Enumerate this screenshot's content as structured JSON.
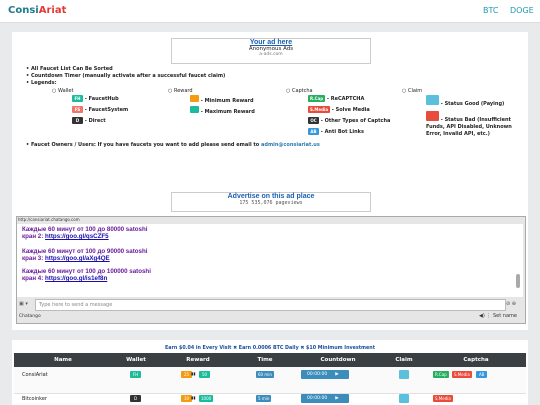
{
  "header": {
    "logo_a": "Consi",
    "logo_b": "Ariat",
    "nav": [
      "BTC",
      "DOGE"
    ]
  },
  "ad_top": {
    "title": "Your ad here",
    "subtitle": "Anonymous Ads",
    "url": "a-ads.com"
  },
  "notes": [
    "All Faucet List Can Be Sorted",
    "Countdown Timer (manually activate after a successful faucet claim)",
    "Legends:"
  ],
  "legend": {
    "wallet": {
      "title": "Wallet",
      "items": [
        {
          "badge": "FH",
          "text": "- FaucetHub"
        },
        {
          "badge": "FS",
          "text": "- FaucetSystem"
        },
        {
          "badge": "D",
          "text": "- Direct"
        }
      ]
    },
    "reward": {
      "title": "Reward",
      "items": [
        {
          "text": "- Minimum Reward"
        },
        {
          "text": "- Maximum Reward"
        }
      ]
    },
    "captcha": {
      "title": "Captcha",
      "items": [
        {
          "badge": "R.Cap",
          "text": "- ReCAPTCHA"
        },
        {
          "badge": "S.Media",
          "text": "- Solve Media"
        },
        {
          "badge": "OC",
          "text": "- Other Types of Captcha"
        },
        {
          "badge": "AB",
          "text": "- Anti Bot Links"
        }
      ]
    },
    "claim": {
      "title": "Claim",
      "items": [
        {
          "text": "- Status Good (Paying)"
        },
        {
          "text": "- Status Bad (Insufficient Funds, API Disabled, Unknown Error, Invalid API, etc.)"
        }
      ]
    }
  },
  "owners_note": {
    "text": "Faucet Owners / Users: If you have faucets you want to add please send email to",
    "email": "admin@consiariat.us"
  },
  "ad_bottom": {
    "title": "Advertise on this ad place",
    "stats": "175 535,076 pageviews"
  },
  "chat": {
    "url": "http://consiariat.chatango.com",
    "messages": [
      {
        "text": "Каждые 60 минут от 100 до 80000 satoshi",
        "label": "кран 2:",
        "link": "https://goo.gl/qsCZF5"
      },
      {
        "text": "Каждые 60 минут от 100 до 90000 satoshi",
        "label": "кран 3:",
        "link": "https://goo.gl/aXg4QE"
      },
      {
        "text": "Каждые 60 минут от 100 до 100000 satoshi",
        "label": "кран 4:",
        "link": "https://goo.gl/is1ef8n"
      }
    ],
    "input": "Type here to send a message",
    "brand": "Chatango",
    "set_name": "Set name"
  },
  "promo": "Earn $0.04 in Every Visit ✖ Earn 0.0006 BTC Daily ✖ $10 Minimum Investment",
  "table": {
    "columns": [
      "Name",
      "Wallet",
      "Reward",
      "Time",
      "Countdown",
      "Claim",
      "Captcha"
    ],
    "rows": [
      {
        "name": "ConsiAriat",
        "wallet": "FH",
        "reward": [
          "25",
          "50"
        ],
        "time": "60 min",
        "countdown": "00:00:00",
        "captcha": [
          "R.Cap",
          "S.Media",
          "AB"
        ]
      },
      {
        "name": "Bitcoinker",
        "wallet": "D",
        "reward": [
          "10",
          "1000"
        ],
        "time": "5 min",
        "countdown": "00:00:00",
        "captcha": [
          "S.Media"
        ]
      }
    ]
  }
}
